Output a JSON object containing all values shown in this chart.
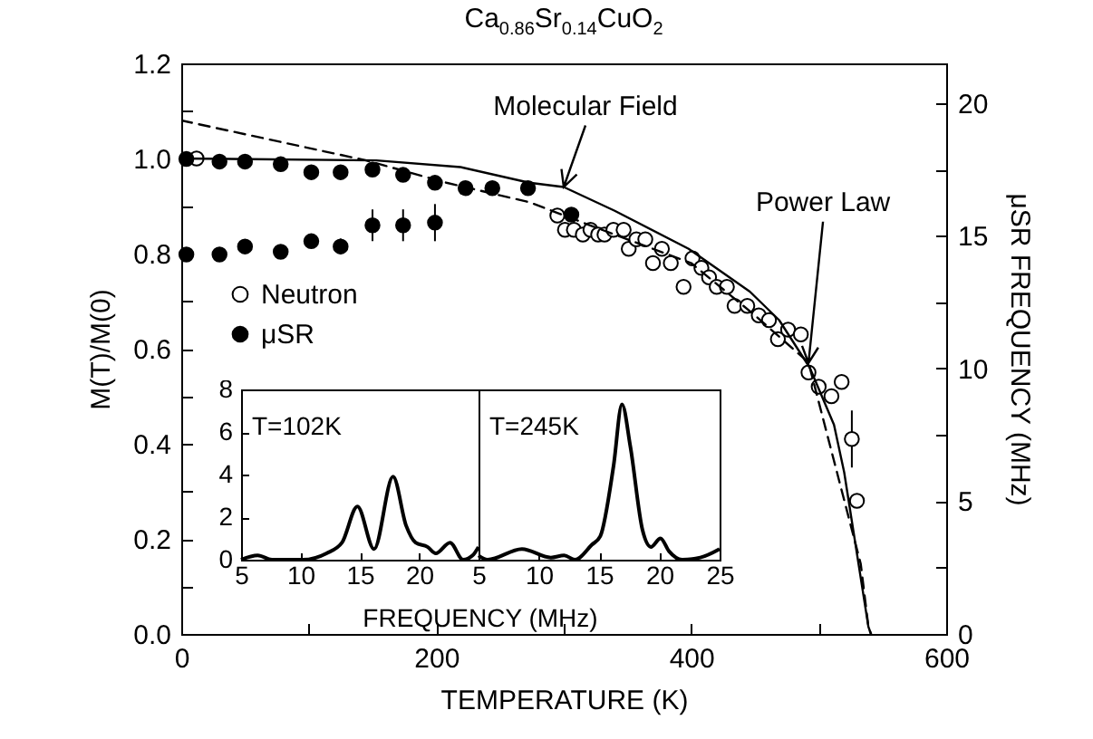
{
  "chart_data": [
    {
      "type": "scatter",
      "title": "Ca$_{0.86}$Sr$_{0.14}$CuO$_{2}$",
      "xlabel": "TEMPERATURE (K)",
      "ylabel": "M(T)/M(0)",
      "y2label": "μSR FREQUENCY (MHz)",
      "xlim": [
        0,
        600
      ],
      "xticks": [
        0,
        {
          "value": 100,
          "label": null
        },
        200,
        {
          "value": 300,
          "label": null
        },
        400,
        {
          "value": 500,
          "label": null
        },
        600
      ],
      "ylim": [
        0,
        1.2
      ],
      "yticks": [
        {
          "value": 0,
          "label": "0.0"
        },
        {
          "value": 0.1,
          "label": null
        },
        {
          "value": 0.2,
          "label": "0.2"
        },
        {
          "value": 0.3,
          "label": null
        },
        {
          "value": 0.4,
          "label": "0.4"
        },
        {
          "value": 0.5,
          "label": null
        },
        {
          "value": 0.6,
          "label": "0.6"
        },
        {
          "value": 0.7,
          "label": null
        },
        {
          "value": 0.8,
          "label": "0.8"
        },
        {
          "value": 0.9,
          "label": null
        },
        {
          "value": 1.0,
          "label": "1.0"
        },
        {
          "value": 1.1,
          "label": null
        },
        {
          "value": 1.2,
          "label": "1.2"
        }
      ],
      "y2lim": [
        0,
        21.5
      ],
      "y2ticks": [
        0,
        {
          "value": 2.5,
          "label": null
        },
        5,
        {
          "value": 7.5,
          "label": null
        },
        10,
        {
          "value": 12.5,
          "label": null
        },
        15,
        {
          "value": 17.5,
          "label": null
        },
        20
      ],
      "legend": "left",
      "annotations": [
        {
          "text": "Molecular Field",
          "x": 300,
          "y": 0.94
        },
        {
          "text": "Power Law",
          "x": 492,
          "y": 0.57
        }
      ],
      "series": [
        {
          "name": "Neutron",
          "color": "#ffffff",
          "marker": "circle",
          "x": [
            12,
            295,
            301,
            308,
            315,
            321,
            327,
            332,
            339,
            347,
            351,
            357,
            364,
            370,
            377,
            384,
            394,
            401,
            408,
            414,
            420,
            428,
            434,
            444,
            453,
            461,
            468,
            476,
            486,
            492,
            500,
            510,
            518,
            526,
            530
          ],
          "values": [
            1.0,
            0.88,
            0.85,
            0.85,
            0.84,
            0.85,
            0.84,
            0.84,
            0.85,
            0.85,
            0.81,
            0.83,
            0.83,
            0.78,
            0.81,
            0.78,
            0.73,
            0.79,
            0.77,
            0.75,
            0.73,
            0.73,
            0.69,
            0.69,
            0.67,
            0.66,
            0.62,
            0.64,
            0.63,
            0.55,
            0.52,
            0.5,
            0.53,
            0.41,
            0.28
          ],
          "errors": [
            null,
            null,
            null,
            null,
            null,
            null,
            null,
            null,
            null,
            null,
            null,
            null,
            null,
            null,
            null,
            null,
            null,
            null,
            null,
            null,
            null,
            null,
            null,
            null,
            null,
            null,
            null,
            null,
            null,
            null,
            null,
            null,
            null,
            0.06,
            null
          ]
        },
        {
          "name": "μSR",
          "color": "#000000",
          "marker": "circle",
          "axis": "y2",
          "x": [
            4,
            30,
            50,
            78,
            102,
            125,
            150,
            174,
            199,
            223,
            244,
            272,
            306,
            4,
            30,
            50,
            78,
            102,
            125,
            150,
            174,
            199
          ],
          "values": [
            17.9,
            17.8,
            17.8,
            17.7,
            17.4,
            17.4,
            17.5,
            17.3,
            17.0,
            16.8,
            16.8,
            16.8,
            15.8,
            14.3,
            14.3,
            14.6,
            14.4,
            14.8,
            14.6,
            15.4,
            15.4,
            15.5
          ],
          "errors": [
            null,
            null,
            null,
            null,
            null,
            null,
            null,
            null,
            null,
            null,
            null,
            null,
            null,
            null,
            null,
            null,
            null,
            null,
            0.3,
            0.6,
            0.6,
            0.7
          ]
        },
        {
          "type": "line",
          "color": "#000000",
          "line_style": "solid",
          "x": [
            0,
            153,
            219,
            273,
            300,
            340,
            398,
            446,
            469,
            493,
            512,
            520,
            539,
            541
          ],
          "values": [
            1.0,
            0.996,
            0.982,
            0.949,
            0.94,
            0.89,
            0.81,
            0.72,
            0.66,
            0.56,
            0.44,
            0.34,
            0.015,
            0
          ]
        },
        {
          "type": "line",
          "color": "#000000",
          "line_style": "dashed",
          "x": [
            0,
            145,
            208,
            273,
            330,
            400,
            450,
            492,
            533,
            539,
            541
          ],
          "values": [
            1.08,
            0.996,
            0.949,
            0.908,
            0.85,
            0.78,
            0.67,
            0.571,
            0.147,
            0.015,
            0
          ]
        }
      ]
    },
    {
      "type": "line",
      "xlabel": "FREQUENCY (MHz)",
      "annotations": [
        "T=102K"
      ],
      "xlim": [
        5,
        25
      ],
      "xticks": [
        5,
        10,
        15,
        20
      ],
      "ylim": [
        0,
        8
      ],
      "yticks": [
        0,
        2,
        4,
        6,
        8
      ],
      "series": [
        {
          "color": "#000000",
          "x": [
            5,
            6.4,
            7.6,
            10.2,
            12.2,
            13.5,
            14.8,
            16.2,
            17.8,
            18.9,
            19.7,
            20.7,
            21.4,
            22.6,
            23.7,
            24.5,
            25
          ],
          "values": [
            0,
            0.2,
            0,
            0,
            0.3,
            0.8,
            2.5,
            0.5,
            3.9,
            1.6,
            0.8,
            0.6,
            0.3,
            0.8,
            0,
            0.2,
            0.6
          ]
        }
      ]
    },
    {
      "type": "line",
      "annotations": [
        "T=245K"
      ],
      "xlim": [
        5,
        25
      ],
      "xticks": [
        5,
        10,
        15,
        20,
        25
      ],
      "ylim": [
        0,
        8
      ],
      "yticks": [
        0,
        2,
        4,
        6,
        8
      ],
      "tick_labels": "x",
      "series": [
        {
          "color": "#000000",
          "x": [
            5,
            5.75,
            8.6,
            11,
            12.1,
            13,
            14.4,
            15.1,
            16.2,
            16.9,
            17.6,
            18.6,
            19.3,
            20.1,
            20.8,
            21.9,
            23.4,
            25
          ],
          "values": [
            0.2,
            0,
            0.5,
            0.1,
            0.2,
            0,
            0.7,
            1.1,
            4.4,
            7.3,
            5.3,
            1.4,
            0.6,
            1.0,
            0.4,
            0,
            0.1,
            0.5
          ]
        }
      ]
    }
  ]
}
